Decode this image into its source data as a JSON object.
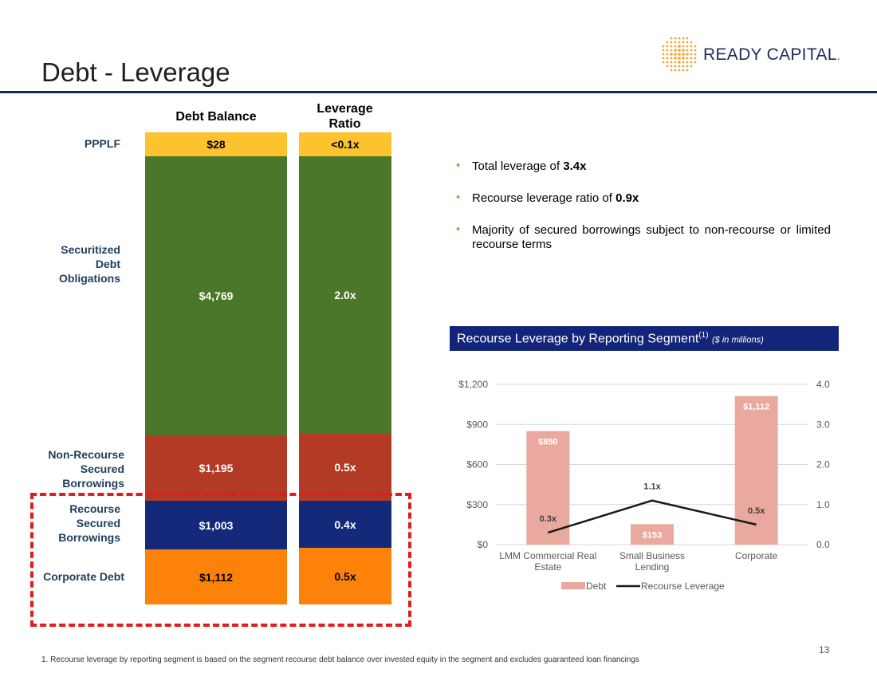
{
  "header": {
    "title": "Debt - Leverage",
    "logo_text": "READY CAPITAL",
    "logo_mark": "."
  },
  "stack": {
    "col1_header": "Debt Balance",
    "col2_header": "Leverage Ratio",
    "rows": [
      {
        "label": "PPPLF",
        "balance": "$28",
        "ratio": "<0.1x",
        "color": "#fdc32e"
      },
      {
        "label": "Securitized\nDebt\nObligations",
        "balance": "$4,769",
        "ratio": "2.0x",
        "color": "#4a7729"
      },
      {
        "label": "Non-Recourse\nSecured\nBorrowings",
        "balance": "$1,195",
        "ratio": "0.5x",
        "color": "#b33b25"
      },
      {
        "label": "Recourse\nSecured\nBorrowings",
        "balance": "$1,003",
        "ratio": "0.4x",
        "color": "#14297a"
      },
      {
        "label": "Corporate Debt",
        "balance": "$1,112",
        "ratio": "0.5x",
        "color": "#fd8209"
      }
    ]
  },
  "bullets": {
    "b1_pre": "Total leverage of ",
    "b1_bold": "3.4x",
    "b2_pre": "Recourse leverage ratio of ",
    "b2_bold": "0.9x",
    "b3": "Majority of secured borrowings subject to non-recourse or limited recourse terms"
  },
  "chart_header": {
    "title": "Recourse Leverage by Reporting Segment",
    "sup": "(1)",
    "subtitle": "($ in millions)"
  },
  "chart_data": {
    "type": "bar",
    "categories": [
      [
        "LMM Commercial Real",
        "Estate"
      ],
      [
        "Small Business",
        "Lending"
      ],
      [
        "Corporate"
      ]
    ],
    "series": [
      {
        "name": "Debt",
        "type": "bar",
        "axis": "left",
        "values": [
          850,
          153,
          1112
        ],
        "labels": [
          "$850",
          "$153",
          "$1,112"
        ],
        "color": "#eaa99e"
      },
      {
        "name": "Recourse Leverage",
        "type": "line",
        "axis": "right",
        "values": [
          0.3,
          1.1,
          0.5
        ],
        "labels": [
          "0.3x",
          "1.1x",
          "0.5x"
        ],
        "color": "#1a1a1a"
      }
    ],
    "left_axis": {
      "ylim": [
        0,
        1200
      ],
      "ticks": [
        0,
        300,
        600,
        900,
        1200
      ],
      "tick_labels": [
        "$0",
        "$300",
        "$600",
        "$900",
        "$1,200"
      ]
    },
    "right_axis": {
      "ylim": [
        0,
        4
      ],
      "ticks": [
        0,
        1,
        2,
        3,
        4
      ],
      "tick_labels": [
        "0.0",
        "1.0",
        "2.0",
        "3.0",
        "4.0"
      ]
    },
    "grid": true,
    "legend_position": "bottom"
  },
  "footer": {
    "footnote": "1. Recourse leverage by reporting segment is based on the segment recourse debt balance over invested equity in the segment and excludes guaranteed loan financings",
    "page_number": "13"
  }
}
